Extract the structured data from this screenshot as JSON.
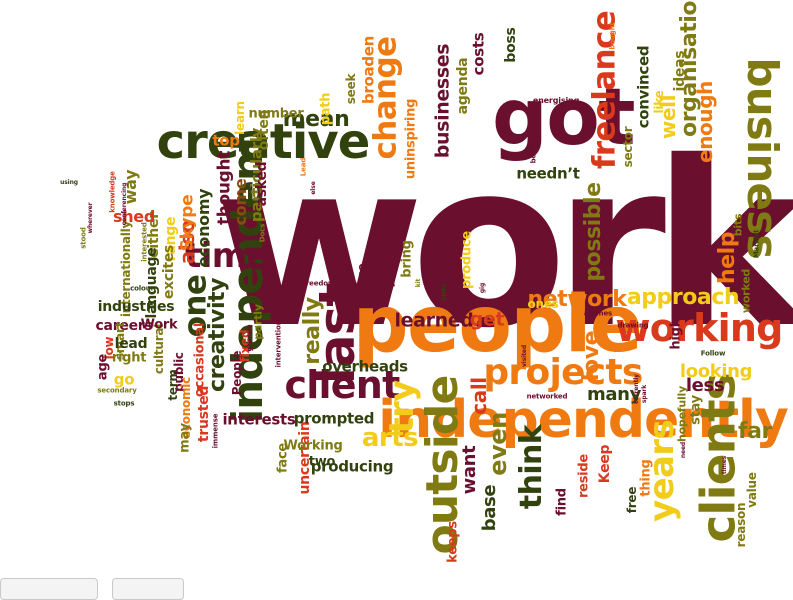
{
  "palette": {
    "maroon": "#6b0f2e",
    "orange": "#f07a12",
    "red": "#d9391c",
    "olive": "#7f7a12",
    "darkgreen": "#31420f",
    "yellow": "#f2cc1a",
    "brown": "#8a4a12"
  },
  "words": [
    {
      "id": "work",
      "text": "work",
      "color": "maroon",
      "rot": 0
    },
    {
      "id": "people",
      "text": "people",
      "color": "orange",
      "rot": 0
    },
    {
      "id": "got",
      "text": "got",
      "color": "maroon",
      "rot": 0
    },
    {
      "id": "creative",
      "text": "creative",
      "color": "darkgreen",
      "rot": 0
    },
    {
      "id": "independently",
      "text": "independently",
      "color": "orange",
      "rot": 0
    },
    {
      "id": "business",
      "text": "business",
      "color": "olive",
      "rot": 90
    },
    {
      "id": "clients",
      "text": "clients",
      "color": "olive",
      "rot": -90
    },
    {
      "id": "outside",
      "text": "outside",
      "color": "olive",
      "rot": -90
    },
    {
      "id": "independent",
      "text": "independent",
      "color": "darkgreen",
      "rot": -90
    },
    {
      "id": "last",
      "text": "last",
      "color": "maroon",
      "rot": -90
    },
    {
      "id": "projects",
      "text": "projects",
      "color": "orange",
      "rot": 0
    },
    {
      "id": "working",
      "text": "working",
      "color": "red",
      "rot": 0
    },
    {
      "id": "client",
      "text": "client",
      "color": "maroon",
      "rot": 0
    },
    {
      "id": "time",
      "text": "time",
      "color": "maroon",
      "rot": 0
    },
    {
      "id": "one",
      "text": "one",
      "color": "darkgreen",
      "rot": -90
    },
    {
      "id": "freelance",
      "text": "freelance",
      "color": "red",
      "rot": -90
    },
    {
      "id": "change",
      "text": "change",
      "color": "orange",
      "rot": -90
    },
    {
      "id": "try",
      "text": "try",
      "color": "yellow",
      "rot": -90
    },
    {
      "id": "years",
      "text": "years",
      "color": "yellow",
      "rot": -90
    },
    {
      "id": "think",
      "text": "think",
      "color": "darkgreen",
      "rot": -90
    },
    {
      "id": "even",
      "text": "even",
      "color": "olive",
      "rot": -90
    },
    {
      "id": "arts",
      "text": "arts",
      "color": "yellow",
      "rot": 0
    },
    {
      "id": "mean",
      "text": "mean",
      "color": "darkgreen",
      "rot": 0
    },
    {
      "id": "network",
      "text": "network",
      "color": "orange",
      "rot": 0
    },
    {
      "id": "approach",
      "text": "approach",
      "color": "yellow",
      "rot": 0
    },
    {
      "id": "creativity",
      "text": "creativity",
      "color": "darkgreen",
      "rot": -90
    },
    {
      "id": "really",
      "text": "really",
      "color": "olive",
      "rot": -90
    },
    {
      "id": "possible",
      "text": "possible",
      "color": "olive",
      "rot": -90
    },
    {
      "id": "organisations",
      "text": "organisations",
      "color": "olive",
      "rot": -90
    },
    {
      "id": "enough",
      "text": "enough",
      "color": "orange",
      "rot": -90
    },
    {
      "id": "help",
      "text": "help",
      "color": "orange",
      "rot": -90
    },
    {
      "id": "well",
      "text": "well",
      "color": "yellow",
      "rot": -90
    },
    {
      "id": "businesses",
      "text": "businesses",
      "color": "maroon",
      "rot": -90
    },
    {
      "id": "learned",
      "text": "learned",
      "color": "maroon",
      "rot": 0
    },
    {
      "id": "get",
      "text": "get",
      "color": "red",
      "rot": 0
    },
    {
      "id": "love",
      "text": "love",
      "color": "orange",
      "rot": -90
    },
    {
      "id": "call",
      "text": "call",
      "color": "red",
      "rot": -90
    },
    {
      "id": "want",
      "text": "want",
      "color": "maroon",
      "rot": -90
    },
    {
      "id": "base",
      "text": "base",
      "color": "darkgreen",
      "rot": -90
    },
    {
      "id": "far",
      "text": "far",
      "color": "olive",
      "rot": 0
    },
    {
      "id": "less",
      "text": "less",
      "color": "maroon",
      "rot": 0
    },
    {
      "id": "looking",
      "text": "looking",
      "color": "yellow",
      "rot": 0
    },
    {
      "id": "many",
      "text": "many",
      "color": "darkgreen",
      "rot": 0
    },
    {
      "id": "also",
      "text": "also",
      "color": "red",
      "rot": -90
    },
    {
      "id": "Skype",
      "text": "Skype",
      "color": "orange",
      "rot": -90
    },
    {
      "id": "economy",
      "text": "economy",
      "color": "darkgreen",
      "rot": -90
    },
    {
      "id": "thought",
      "text": "thought",
      "color": "maroon",
      "rot": -90
    },
    {
      "id": "particularly",
      "text": "particularly",
      "color": "olive",
      "rot": -90
    },
    {
      "id": "top",
      "text": "top",
      "color": "orange",
      "rot": 0
    },
    {
      "id": "often",
      "text": "often",
      "color": "olive",
      "rot": -90
    },
    {
      "id": "come",
      "text": "come",
      "color": "brown",
      "rot": -90
    },
    {
      "id": "asked",
      "text": "asked",
      "color": "maroon",
      "rot": -90
    },
    {
      "id": "either",
      "text": "either",
      "color": "olive",
      "rot": -90
    },
    {
      "id": "range",
      "text": "range",
      "color": "yellow",
      "rot": -90
    },
    {
      "id": "language",
      "text": "language",
      "color": "darkgreen",
      "rot": -90
    },
    {
      "id": "excites",
      "text": "excites",
      "color": "olive",
      "rot": -90
    },
    {
      "id": "shed",
      "text": "shed",
      "color": "red",
      "rot": 0
    },
    {
      "id": "way",
      "text": "way",
      "color": "olive",
      "rot": -90
    },
    {
      "id": "internationally",
      "text": "internationally",
      "color": "olive",
      "rot": -90
    },
    {
      "id": "industries",
      "text": "industries",
      "color": "darkgreen",
      "rot": 0
    },
    {
      "id": "careers",
      "text": "careers",
      "color": "maroon",
      "rot": 0
    },
    {
      "id": "smart",
      "text": "smart",
      "color": "olive",
      "rot": -90
    },
    {
      "id": "low",
      "text": "low",
      "color": "red",
      "rot": -90
    },
    {
      "id": "age",
      "text": "age",
      "color": "maroon",
      "rot": -90
    },
    {
      "id": "lead",
      "text": "lead",
      "color": "darkgreen",
      "rot": 0
    },
    {
      "id": "right",
      "text": "right",
      "color": "olive",
      "rot": 0
    },
    {
      "id": "cultural",
      "text": "cultural",
      "color": "olive",
      "rot": -90
    },
    {
      "id": "Work2",
      "text": "Work",
      "color": "maroon",
      "rot": 0
    },
    {
      "id": "go",
      "text": "go",
      "color": "yellow",
      "rot": 0
    },
    {
      "id": "term",
      "text": "term",
      "color": "darkgreen",
      "rot": -90
    },
    {
      "id": "public",
      "text": "public",
      "color": "maroon",
      "rot": -90
    },
    {
      "id": "economic",
      "text": "economic",
      "color": "orange",
      "rot": -90
    },
    {
      "id": "occasional",
      "text": "occasional",
      "color": "red",
      "rot": -90
    },
    {
      "id": "may",
      "text": "may",
      "color": "olive",
      "rot": -90
    },
    {
      "id": "trusted",
      "text": "trusted",
      "color": "red",
      "rot": -90
    },
    {
      "id": "People2",
      "text": "People",
      "color": "maroon",
      "rot": -90
    },
    {
      "id": "fixed",
      "text": "fixed",
      "color": "red",
      "rot": -90
    },
    {
      "id": "partly",
      "text": "partly",
      "color": "olive",
      "rot": -90
    },
    {
      "id": "interests",
      "text": "interests",
      "color": "maroon",
      "rot": 0
    },
    {
      "id": "face",
      "text": "face",
      "color": "olive",
      "rot": -90
    },
    {
      "id": "uncertain",
      "text": "uncertain",
      "color": "red",
      "rot": -90
    },
    {
      "id": "prompted",
      "text": "prompted",
      "color": "darkgreen",
      "rot": 0
    },
    {
      "id": "overheads",
      "text": "overheads",
      "color": "darkgreen",
      "rot": 0
    },
    {
      "id": "Working2",
      "text": "Working",
      "color": "olive",
      "rot": 0
    },
    {
      "id": "two",
      "text": "two",
      "color": "darkgreen",
      "rot": 0
    },
    {
      "id": "producing",
      "text": "producing",
      "color": "darkgreen",
      "rot": 0
    },
    {
      "id": "use",
      "text": "use",
      "color": "maroon",
      "rot": -90
    },
    {
      "id": "bring",
      "text": "bring",
      "color": "olive",
      "rot": -90
    },
    {
      "id": "produce",
      "text": "produce",
      "color": "yellow",
      "rot": -90
    },
    {
      "id": "number",
      "text": "number",
      "color": "olive",
      "rot": 0
    },
    {
      "id": "path",
      "text": "path",
      "color": "yellow",
      "rot": -90
    },
    {
      "id": "seek",
      "text": "seek",
      "color": "olive",
      "rot": -90
    },
    {
      "id": "broaden",
      "text": "broaden",
      "color": "orange",
      "rot": -90
    },
    {
      "id": "uninspiring",
      "text": "uninspiring",
      "color": "orange",
      "rot": -90
    },
    {
      "id": "agenda",
      "text": "agenda",
      "color": "olive",
      "rot": -90
    },
    {
      "id": "costs",
      "text": "costs",
      "color": "maroon",
      "rot": -90
    },
    {
      "id": "boss",
      "text": "boss",
      "color": "darkgreen",
      "rot": -90
    },
    {
      "id": "neednt",
      "text": "needn’t",
      "color": "darkgreen",
      "rot": 0
    },
    {
      "id": "sector",
      "text": "sector",
      "color": "olive",
      "rot": -90
    },
    {
      "id": "convinced",
      "text": "convinced",
      "color": "darkgreen",
      "rot": -90
    },
    {
      "id": "like",
      "text": "like",
      "color": "yellow",
      "rot": -90
    },
    {
      "id": "ideas",
      "text": "ideas",
      "color": "olive",
      "rot": -90
    },
    {
      "id": "bits",
      "text": "bits",
      "color": "olive",
      "rot": -90
    },
    {
      "id": "high",
      "text": "high",
      "color": "maroon",
      "rot": -90
    },
    {
      "id": "stay",
      "text": "stay",
      "color": "olive",
      "rot": -90
    },
    {
      "id": "worked",
      "text": "worked",
      "color": "olive",
      "rot": -90
    },
    {
      "id": "hopefully",
      "text": "hopefully",
      "color": "olive",
      "rot": -90
    },
    {
      "id": "ones",
      "text": "ones",
      "color": "yellow",
      "rot": 0
    },
    {
      "id": "find",
      "text": "find",
      "color": "maroon",
      "rot": -90
    },
    {
      "id": "reside",
      "text": "reside",
      "color": "red",
      "rot": -90
    },
    {
      "id": "Keep",
      "text": "Keep",
      "color": "red",
      "rot": -90
    },
    {
      "id": "free",
      "text": "free",
      "color": "darkgreen",
      "rot": -90
    },
    {
      "id": "thing",
      "text": "thing",
      "color": "orange",
      "rot": -90
    },
    {
      "id": "keeps",
      "text": "keeps",
      "color": "red",
      "rot": -90
    },
    {
      "id": "value",
      "text": "value",
      "color": "olive",
      "rot": -90
    },
    {
      "id": "reason",
      "text": "reason",
      "color": "olive",
      "rot": -90
    },
    {
      "id": "s_using",
      "text": "using",
      "color": "darkgreen",
      "rot": 0
    },
    {
      "id": "s_wherever",
      "text": "wherever",
      "color": "maroon",
      "rot": -90
    },
    {
      "id": "s_knowledge",
      "text": "knowledge",
      "color": "red",
      "rot": -90
    },
    {
      "id": "s_stood",
      "text": "stood",
      "color": "olive",
      "rot": -90
    },
    {
      "id": "s_interested",
      "text": "interested",
      "color": "olive",
      "rot": -90
    },
    {
      "id": "s_colour",
      "text": "colour",
      "color": "darkgreen",
      "rot": 0
    },
    {
      "id": "s_secondary",
      "text": "secondary",
      "color": "olive",
      "rot": 0
    },
    {
      "id": "s_stops",
      "text": "stops",
      "color": "darkgreen",
      "rot": 0
    },
    {
      "id": "s_freedom",
      "text": "freedom",
      "color": "maroon",
      "rot": 0
    },
    {
      "id": "s_specialists",
      "text": "specialists",
      "color": "maroon",
      "rot": 0
    },
    {
      "id": "s_grande",
      "text": "grande",
      "color": "maroon",
      "rot": -90
    },
    {
      "id": "s_intervention",
      "text": "intervention",
      "color": "maroon",
      "rot": -90
    },
    {
      "id": "s_immense",
      "text": "immense",
      "color": "maroon",
      "rot": -90
    },
    {
      "id": "s_kit",
      "text": "kit",
      "color": "olive",
      "rot": -90
    },
    {
      "id": "s_spec",
      "text": "spec",
      "color": "darkgreen",
      "rot": -90
    },
    {
      "id": "s_gig",
      "text": "gig",
      "color": "maroon",
      "rot": -90
    },
    {
      "id": "s_airlines",
      "text": "airlines",
      "color": "maroon",
      "rot": 0
    },
    {
      "id": "s_drawing",
      "text": "drawing",
      "color": "maroon",
      "rot": 0
    },
    {
      "id": "s_Follow",
      "text": "Follow",
      "color": "darkgreen",
      "rot": 0
    },
    {
      "id": "s_visited",
      "text": "visited",
      "color": "maroon",
      "rot": -90
    },
    {
      "id": "s_networked",
      "text": "networked",
      "color": "maroon",
      "rot": 0
    },
    {
      "id": "s_currently",
      "text": "currently",
      "color": "maroon",
      "rot": -90
    },
    {
      "id": "s_spark",
      "text": "spark",
      "color": "maroon",
      "rot": -90
    },
    {
      "id": "s_times",
      "text": "times",
      "color": "maroon",
      "rot": -90
    },
    {
      "id": "s_need",
      "text": "need",
      "color": "maroon",
      "rot": -90
    },
    {
      "id": "s_Lead",
      "text": "Lead",
      "color": "orange",
      "rot": -90
    },
    {
      "id": "s_else",
      "text": "else",
      "color": "maroon",
      "rot": -90
    },
    {
      "id": "s_Docs",
      "text": "Docs",
      "color": "olive",
      "rot": -90
    },
    {
      "id": "s_energising",
      "text": "energising",
      "color": "maroon",
      "rot": 0
    },
    {
      "id": "s_boring",
      "text": "boring",
      "color": "maroon",
      "rot": -90
    },
    {
      "id": "s_bought",
      "text": "bought",
      "color": "orange",
      "rot": -90
    },
    {
      "id": "s_Marxist",
      "text": "Marxist",
      "color": "darkgreen",
      "rot": -90
    },
    {
      "id": "s_conferencing",
      "text": "conferencing",
      "color": "maroon",
      "rot": -90
    },
    {
      "id": "s_learn",
      "text": "learn",
      "color": "yellow",
      "rot": -90
    }
  ]
}
